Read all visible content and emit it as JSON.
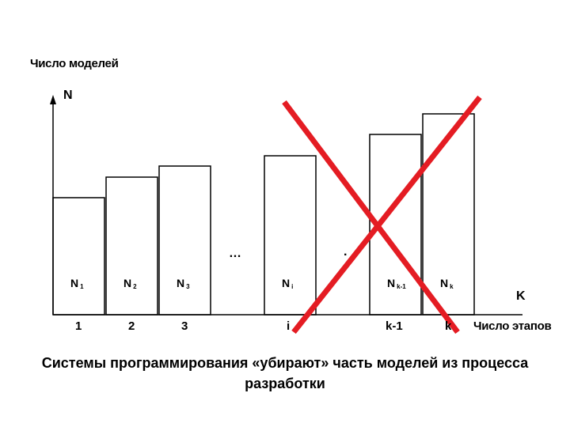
{
  "y_axis_label": "Число моделей",
  "y_axis_symbol": "N",
  "x_axis_symbol": "K",
  "x_axis_label": "Число этапов",
  "ellipsis_left": "…",
  "ellipsis_right": ".",
  "caption": {
    "line1": "Системы программирования «убирают» часть моделей из процесса",
    "line2": "разработки"
  },
  "colors": {
    "cross": "#e41c23",
    "bars": "#000000",
    "background": "#ffffff"
  },
  "chart_data": {
    "type": "bar",
    "categories": [
      "1",
      "2",
      "3",
      "i",
      "k-1",
      "k"
    ],
    "series": [
      {
        "labels": [
          {
            "main": "N",
            "sub": "1"
          },
          {
            "main": "N",
            "sub": "2"
          },
          {
            "main": "N",
            "sub": "3"
          },
          {
            "main": "N",
            "sub": "i"
          },
          {
            "main": "N",
            "sub": "k-1"
          },
          {
            "main": "N",
            "sub": "k"
          }
        ],
        "values": [
          148,
          174,
          188,
          201,
          228,
          254
        ]
      }
    ],
    "xlabel": "Число этапов",
    "ylabel": "Число моделей",
    "annotation": "red cross over the right part of the chart"
  }
}
